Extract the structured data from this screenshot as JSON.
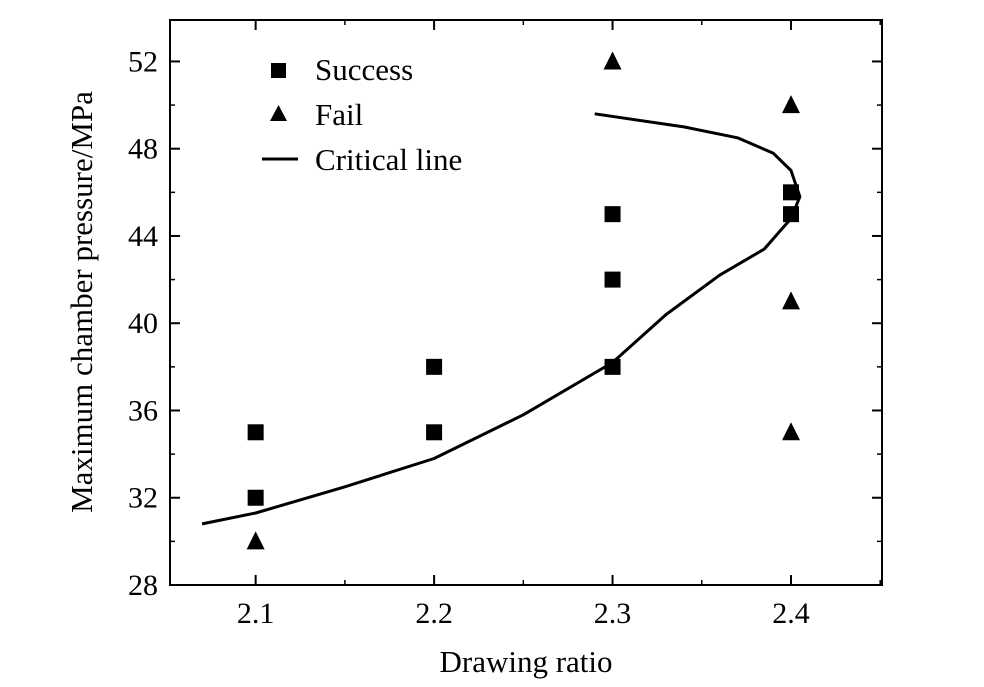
{
  "chart_data": {
    "type": "scatter",
    "title": "",
    "xlabel": "Drawing ratio",
    "ylabel": "Maximum chamber pressure/MPa",
    "xlim": [
      2.052,
      2.451
    ],
    "ylim": [
      28,
      53.9
    ],
    "xticks": [
      2.1,
      2.2,
      2.3,
      2.4
    ],
    "xtick_labels": [
      "2.1",
      "2.2",
      "2.3",
      "2.4"
    ],
    "yticks": [
      28,
      32,
      36,
      40,
      44,
      48,
      52
    ],
    "ytick_labels": [
      "28",
      "32",
      "36",
      "40",
      "44",
      "48",
      "52"
    ],
    "grid": false,
    "legend_position": "top-left",
    "series": [
      {
        "name": "Success",
        "marker": "square",
        "points": [
          [
            2.1,
            32
          ],
          [
            2.1,
            35
          ],
          [
            2.2,
            35
          ],
          [
            2.2,
            38
          ],
          [
            2.3,
            38
          ],
          [
            2.3,
            42
          ],
          [
            2.3,
            45
          ],
          [
            2.4,
            45
          ],
          [
            2.4,
            46
          ]
        ]
      },
      {
        "name": "Fail",
        "marker": "triangle",
        "points": [
          [
            2.1,
            30
          ],
          [
            2.3,
            52
          ],
          [
            2.4,
            50
          ],
          [
            2.4,
            41
          ],
          [
            2.4,
            35
          ]
        ]
      },
      {
        "name": "Critical line",
        "marker": "line",
        "points": [
          [
            2.07,
            30.8
          ],
          [
            2.1,
            31.3
          ],
          [
            2.15,
            32.5
          ],
          [
            2.2,
            33.8
          ],
          [
            2.25,
            35.8
          ],
          [
            2.3,
            38.2
          ],
          [
            2.33,
            40.4
          ],
          [
            2.36,
            42.2
          ],
          [
            2.385,
            43.4
          ],
          [
            2.4,
            44.8
          ],
          [
            2.405,
            45.8
          ],
          [
            2.4,
            47.0
          ],
          [
            2.39,
            47.8
          ],
          [
            2.37,
            48.5
          ],
          [
            2.34,
            49.0
          ],
          [
            2.29,
            49.6
          ]
        ]
      }
    ]
  }
}
